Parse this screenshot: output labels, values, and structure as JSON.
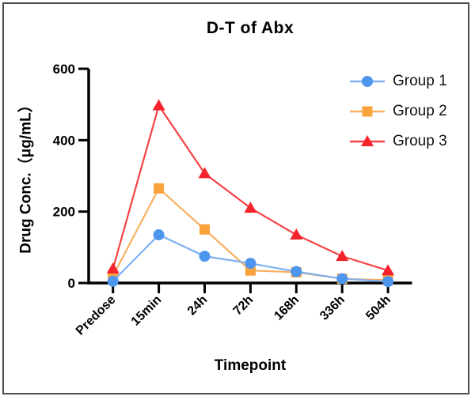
{
  "figure": {
    "border_color": "#4a4a4a",
    "background": "#ffffff"
  },
  "chart_data": {
    "type": "line",
    "title": "D-T of Abx",
    "xlabel": "Timepoint",
    "ylabel": "Drug Conc.（μg/mL）",
    "categories": [
      "Predose",
      "15min",
      "24h",
      "72h",
      "168h",
      "336h",
      "504h"
    ],
    "y_ticks": [
      0,
      200,
      400,
      600
    ],
    "ylim": [
      0,
      600
    ],
    "grid": false,
    "legend_position": "top-right",
    "axis_color": "#000000",
    "series": [
      {
        "name": "Group 1",
        "marker": "circle",
        "color": "#4e96ed",
        "line_color": "#7cb0f2",
        "values": [
          5,
          135,
          75,
          55,
          32,
          12,
          4
        ]
      },
      {
        "name": "Group 2",
        "marker": "square",
        "color": "#f9a33c",
        "line_color": "#f9b060",
        "values": [
          20,
          265,
          150,
          35,
          30,
          12,
          8
        ]
      },
      {
        "name": "Group 3",
        "marker": "triangle",
        "color": "#f5232b",
        "line_color": "#f64246",
        "values": [
          40,
          497,
          307,
          210,
          135,
          75,
          35
        ]
      }
    ]
  }
}
